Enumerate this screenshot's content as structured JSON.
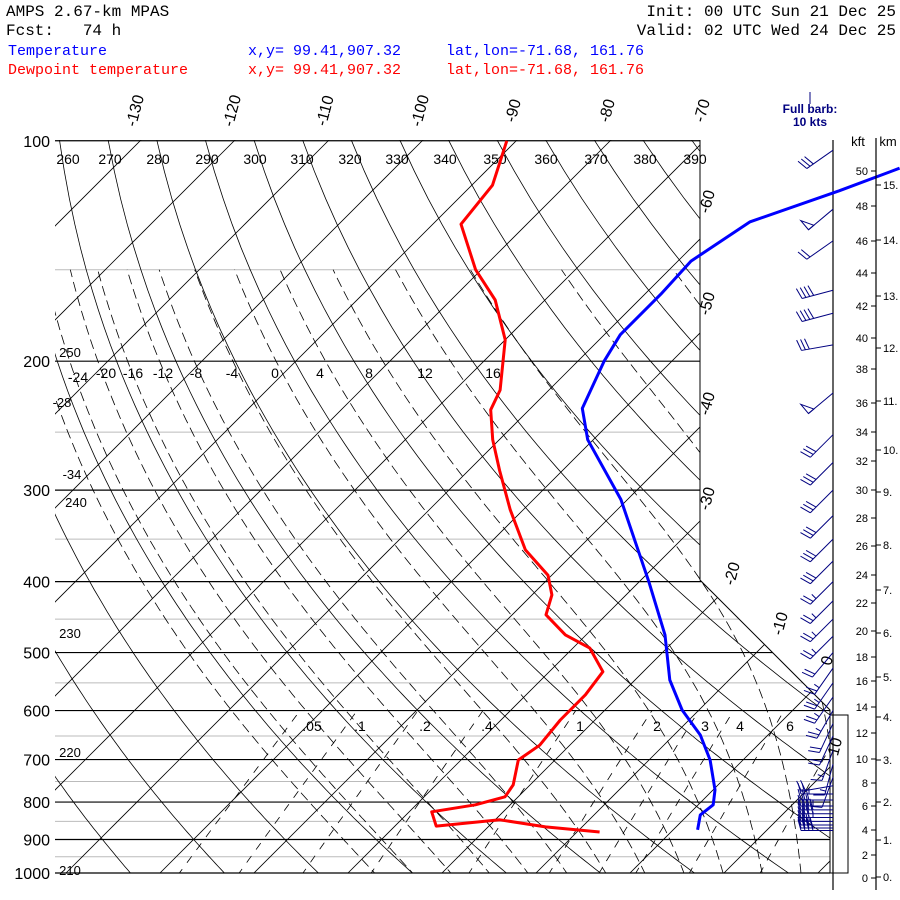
{
  "header": {
    "model": "AMPS 2.67-km MPAS",
    "fcst_label": "Fcst:",
    "fcst_value": "74 h",
    "init": "Init: 00 UTC Sun 21 Dec 25",
    "valid": "Valid: 02 UTC Wed 24 Dec 25",
    "legend": [
      {
        "name": "Temperature",
        "xy": "x,y= 99.41,907.32",
        "latlon": "lat,lon=-71.68, 161.76",
        "color": "#0000ff"
      },
      {
        "name": "Dewpoint temperature",
        "xy": "x,y= 99.41,907.32",
        "latlon": "lat,lon=-71.68, 161.76",
        "color": "#ff0000"
      }
    ],
    "barb_note_1": "Full barb:",
    "barb_note_2": "10 kts"
  },
  "chart_data": {
    "type": "line",
    "subtype": "skew-T log-P",
    "ylabel": "Pressure (hPa)",
    "pressure_ticks": [
      "100",
      "200",
      "300",
      "400",
      "500",
      "600",
      "700",
      "800",
      "900",
      "1000"
    ],
    "isotherm_labels_top": [
      "-130",
      "-120",
      "-110",
      "-100",
      "-90",
      "-80",
      "-70"
    ],
    "isotherm_labels_right": [
      "-60",
      "-50",
      "-40",
      "-30",
      "-20",
      "-10",
      "0",
      "10"
    ],
    "dry_adiabat_labels": [
      "260",
      "270",
      "280",
      "290",
      "300",
      "310",
      "320",
      "330",
      "340",
      "350",
      "360",
      "370",
      "380",
      "390"
    ],
    "moist_labels": [
      "-24",
      "-20",
      "-16",
      "-12",
      "-8",
      "-4",
      "0",
      "4",
      "8",
      "12",
      "16"
    ],
    "mixing_ratio_labels": [
      ".05",
      ".1",
      ".2",
      ".4",
      "1",
      "2",
      "3",
      "4",
      "6"
    ],
    "misc_labels": [
      "250",
      "-28",
      "-34",
      "240",
      "230",
      "220",
      "210"
    ],
    "height_axis": {
      "kft_title": "kft",
      "km_title": "km",
      "kft": [
        "0",
        "2",
        "4",
        "6",
        "8",
        "10",
        "12",
        "14",
        "16",
        "18",
        "20",
        "22",
        "24",
        "26",
        "28",
        "30",
        "32",
        "34",
        "36",
        "38",
        "40",
        "42",
        "44",
        "46",
        "48",
        "50"
      ],
      "km": [
        "0.",
        "1.",
        "2.",
        "3.",
        "4.",
        "5.",
        "6.",
        "7.",
        "8.",
        "9.",
        "10.",
        "11.",
        "12.",
        "13.",
        "14.",
        "15."
      ]
    },
    "series": [
      {
        "name": "Temperature",
        "color": "#0000ff",
        "points_p_T": [
          [
            109,
            -46.3
          ],
          [
            117,
            -50.3
          ],
          [
            129,
            -56.5
          ],
          [
            146,
            -58.6
          ],
          [
            162,
            -58.3
          ],
          [
            184,
            -58.3
          ],
          [
            200,
            -57.2
          ],
          [
            232,
            -54.5
          ],
          [
            256,
            -50.6
          ],
          [
            309,
            -40.7
          ],
          [
            400,
            -29.0
          ],
          [
            473,
            -21.6
          ],
          [
            545,
            -16.3
          ],
          [
            599,
            -11.8
          ],
          [
            648,
            -7.2
          ],
          [
            701,
            -3.5
          ],
          [
            770,
            0.2
          ],
          [
            807,
            1.6
          ],
          [
            833,
            1.3
          ],
          [
            873,
            2.6
          ]
        ]
      },
      {
        "name": "Dewpoint temperature",
        "color": "#ff0000",
        "points_p_T": [
          [
            100,
            -91.0
          ],
          [
            115,
            -87.8
          ],
          [
            130,
            -87.0
          ],
          [
            150,
            -80.6
          ],
          [
            165,
            -75.3
          ],
          [
            187,
            -70.0
          ],
          [
            219,
            -65.2
          ],
          [
            233,
            -64.1
          ],
          [
            256,
            -60.7
          ],
          [
            282,
            -56.7
          ],
          [
            319,
            -51.4
          ],
          [
            362,
            -45.5
          ],
          [
            392,
            -40.4
          ],
          [
            417,
            -37.9
          ],
          [
            444,
            -36.4
          ],
          [
            473,
            -32.2
          ],
          [
            493,
            -28.2
          ],
          [
            531,
            -24.3
          ],
          [
            571,
            -23.7
          ],
          [
            618,
            -23.7
          ],
          [
            669,
            -23.2
          ],
          [
            701,
            -23.9
          ],
          [
            758,
            -21.8
          ],
          [
            787,
            -21.4
          ],
          [
            807,
            -23.7
          ],
          [
            825,
            -27.6
          ],
          [
            863,
            -25.6
          ],
          [
            846,
            -19.5
          ],
          [
            865,
            -13.9
          ],
          [
            879,
            -7.6
          ]
        ]
      }
    ],
    "wind_barbs_p_dir_kt": [
      [
        103,
        235,
        30
      ],
      [
        124,
        230,
        50
      ],
      [
        137,
        235,
        20
      ],
      [
        160,
        255,
        40
      ],
      [
        172,
        255,
        40
      ],
      [
        190,
        260,
        30
      ],
      [
        221,
        230,
        50
      ],
      [
        252,
        225,
        30
      ],
      [
        275,
        225,
        30
      ],
      [
        300,
        225,
        30
      ],
      [
        325,
        225,
        30
      ],
      [
        350,
        225,
        30
      ],
      [
        375,
        225,
        30
      ],
      [
        400,
        225,
        25
      ],
      [
        425,
        225,
        25
      ],
      [
        450,
        225,
        25
      ],
      [
        475,
        225,
        25
      ],
      [
        500,
        220,
        20
      ],
      [
        525,
        215,
        25
      ],
      [
        550,
        215,
        25
      ],
      [
        575,
        215,
        25
      ],
      [
        600,
        210,
        25
      ],
      [
        625,
        205,
        20
      ],
      [
        650,
        205,
        20
      ],
      [
        680,
        200,
        15
      ],
      [
        710,
        195,
        15
      ],
      [
        740,
        200,
        10
      ],
      [
        760,
        260,
        20
      ],
      [
        780,
        270,
        25
      ],
      [
        795,
        270,
        30
      ],
      [
        810,
        270,
        35
      ],
      [
        820,
        270,
        40
      ],
      [
        830,
        270,
        40
      ],
      [
        840,
        270,
        35
      ],
      [
        850,
        270,
        25
      ],
      [
        860,
        270,
        30
      ],
      [
        868,
        270,
        40
      ],
      [
        875,
        270,
        40
      ]
    ]
  }
}
